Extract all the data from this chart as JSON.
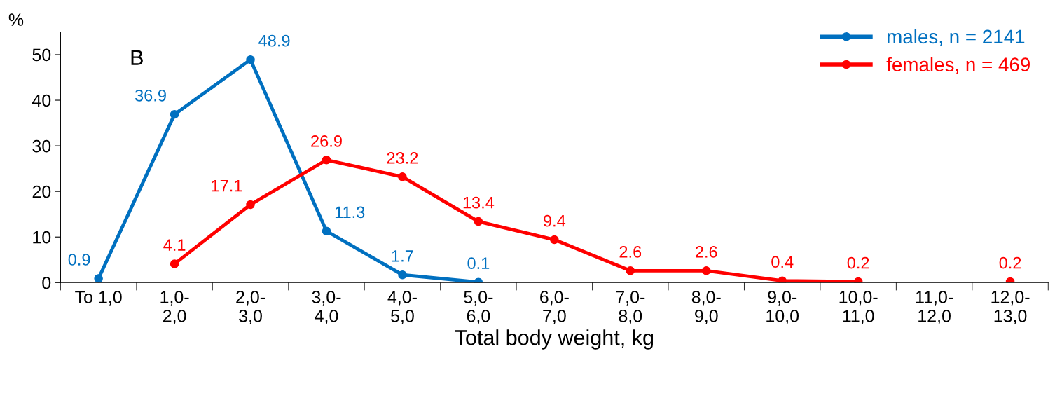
{
  "chart_data": {
    "type": "line",
    "ylabel": "%",
    "xlabel": "Total body weight, kg",
    "annotations": [
      "B"
    ],
    "categories": [
      "To 1,0",
      "1,0-\n2,0",
      "2,0-\n3,0",
      "3,0-\n4,0",
      "4,0-\n5,0",
      "5,0-\n6,0",
      "6,0-\n7,0",
      "7,0-\n8,0",
      "8,0-\n9,0",
      "9,0-\n10,0",
      "10,0-\n11,0",
      "11,0-\n12,0",
      "12,0-\n13,0"
    ],
    "series": [
      {
        "name": "males, n = 2141",
        "color": "#0070c0",
        "values": [
          0.9,
          36.9,
          48.9,
          11.3,
          1.7,
          0.1,
          null,
          null,
          null,
          null,
          null,
          null,
          null
        ]
      },
      {
        "name": "females, n = 469",
        "color": "#ff0000",
        "values": [
          null,
          4.1,
          17.1,
          26.9,
          23.2,
          13.4,
          9.4,
          2.6,
          2.6,
          0.4,
          0.2,
          null,
          0.2
        ]
      }
    ],
    "ylim": [
      0,
      55
    ],
    "yticks": [
      0,
      10,
      20,
      30,
      40,
      50
    ],
    "data_labels": true,
    "legend": "top right",
    "grid": false,
    "marker": "circle",
    "line_style": "solid"
  }
}
